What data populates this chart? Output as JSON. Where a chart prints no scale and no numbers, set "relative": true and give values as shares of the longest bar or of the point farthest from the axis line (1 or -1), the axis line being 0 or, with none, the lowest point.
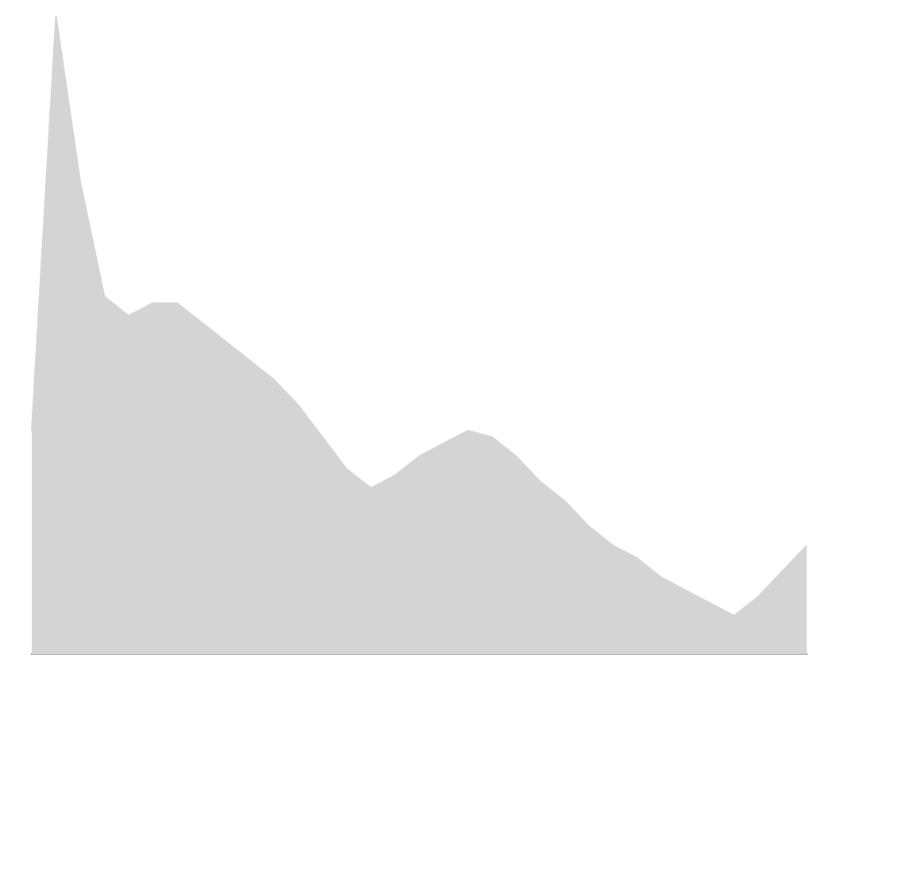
{
  "chart_data": {
    "type": "area",
    "relative": true,
    "categories": [
      null,
      null,
      null,
      null,
      null,
      null,
      null,
      null,
      null,
      null,
      null,
      null,
      null,
      null,
      null,
      null,
      null,
      null,
      null,
      null,
      null,
      null,
      null,
      null,
      null,
      null,
      null,
      null,
      null,
      null,
      null,
      null,
      null
    ],
    "series": [
      {
        "color": "#d4d4d4",
        "values": [
          0.35,
          1.0,
          0.74,
          0.56,
          0.53,
          0.55,
          0.55,
          0.52,
          0.49,
          0.46,
          0.43,
          0.39,
          0.34,
          0.29,
          0.26,
          0.28,
          0.31,
          0.33,
          0.35,
          0.34,
          0.31,
          0.27,
          0.24,
          0.2,
          0.17,
          0.15,
          0.12,
          0.1,
          0.08,
          0.06,
          0.09,
          0.13,
          0.17
        ]
      }
    ]
  }
}
